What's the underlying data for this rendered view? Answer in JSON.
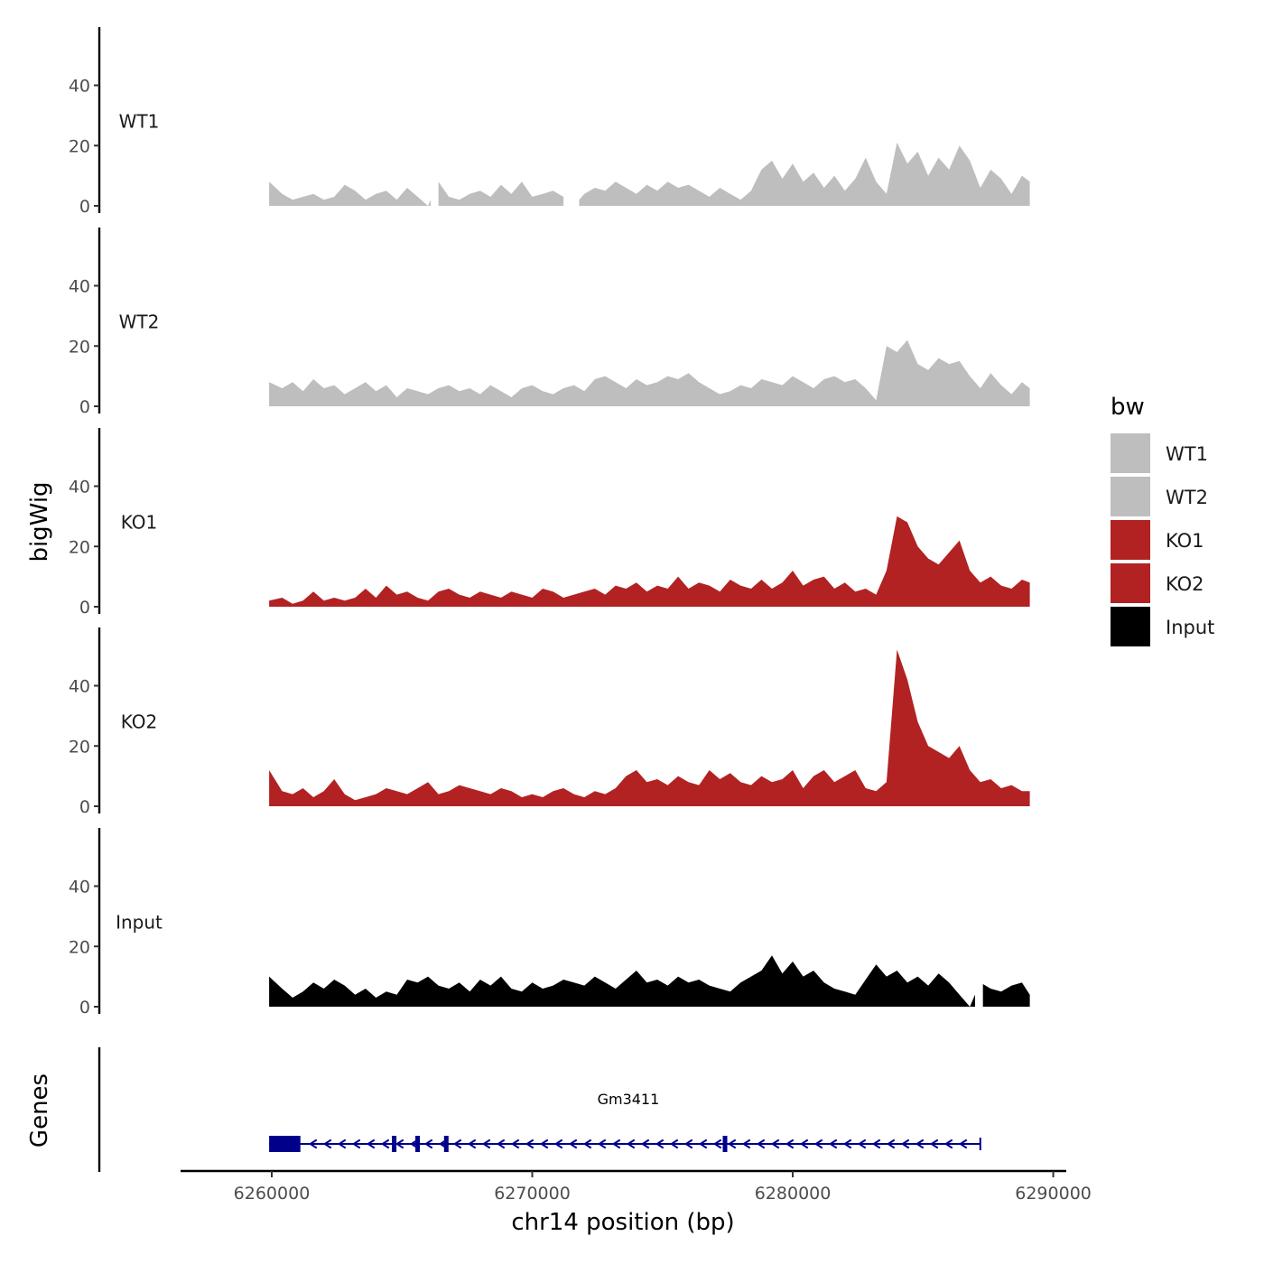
{
  "chart_data": {
    "type": "area",
    "chromosome": "chr14",
    "xlabel": "chr14 position (bp)",
    "ylabel_tracks": "bigWig",
    "ylabel_genes": "Genes",
    "xlim": [
      6256500,
      6290500
    ],
    "x_ticks": [
      6260000,
      6270000,
      6280000,
      6290000
    ],
    "x_tick_labels": [
      "6260000",
      "6270000",
      "6280000",
      "6290000"
    ],
    "ylim": [
      0,
      58
    ],
    "y_ticks": [
      0,
      20,
      40
    ],
    "y_tick_labels": [
      "0",
      "20",
      "40"
    ],
    "legend": {
      "title": "bw",
      "placement": "right",
      "entries": [
        {
          "label": "WT1",
          "color": "#bebebe"
        },
        {
          "label": "WT2",
          "color": "#bebebe"
        },
        {
          "label": "KO1",
          "color": "#b22222"
        },
        {
          "label": "KO2",
          "color": "#b22222"
        },
        {
          "label": "Input",
          "color": "#000000"
        }
      ]
    },
    "tracks": [
      {
        "name": "WT1",
        "color": "#bebebe",
        "x": [
          6259900,
          6260400,
          6260800,
          6261200,
          6261600,
          6262000,
          6262400,
          6262800,
          6263200,
          6263600,
          6264000,
          6264400,
          6264800,
          6265200,
          6265600,
          6266000,
          6266400,
          6266800,
          6267200,
          6267600,
          6268000,
          6268400,
          6268800,
          6269200,
          6269600,
          6270000,
          6270400,
          6270800,
          6271200,
          6271600,
          6272000,
          6272400,
          6272800,
          6273200,
          6273600,
          6274000,
          6274400,
          6274800,
          6275200,
          6275600,
          6276000,
          6276400,
          6276800,
          6277200,
          6277600,
          6278000,
          6278400,
          6278800,
          6279200,
          6279600,
          6280000,
          6280400,
          6280800,
          6281200,
          6281600,
          6282000,
          6282400,
          6282800,
          6283200,
          6283600,
          6284000,
          6284400,
          6284800,
          6285200,
          6285600,
          6286000,
          6286400,
          6286800,
          6287200,
          6287600,
          6288000,
          6288400,
          6288800,
          6289100
        ],
        "y": [
          8,
          4,
          2,
          3,
          4,
          2,
          3,
          7,
          5,
          2,
          4,
          5,
          2,
          6,
          3,
          0,
          8,
          3,
          2,
          4,
          5,
          3,
          7,
          4,
          8,
          3,
          4,
          5,
          3,
          0,
          4,
          6,
          5,
          8,
          6,
          4,
          7,
          5,
          8,
          6,
          7,
          5,
          3,
          6,
          4,
          2,
          5,
          12,
          15,
          9,
          14,
          8,
          11,
          6,
          10,
          5,
          9,
          16,
          8,
          4,
          21,
          14,
          18,
          10,
          16,
          12,
          20,
          15,
          6,
          12,
          9,
          4,
          10,
          8
        ],
        "gaps": [
          [
            6266100,
            6266400
          ],
          [
            6271200,
            6271800
          ]
        ]
      },
      {
        "name": "WT2",
        "color": "#bebebe",
        "x": [
          6259900,
          6260400,
          6260800,
          6261200,
          6261600,
          6262000,
          6262400,
          6262800,
          6263200,
          6263600,
          6264000,
          6264400,
          6264800,
          6265200,
          6265600,
          6266000,
          6266400,
          6266800,
          6267200,
          6267600,
          6268000,
          6268400,
          6268800,
          6269200,
          6269600,
          6270000,
          6270400,
          6270800,
          6271200,
          6271600,
          6272000,
          6272400,
          6272800,
          6273200,
          6273600,
          6274000,
          6274400,
          6274800,
          6275200,
          6275600,
          6276000,
          6276400,
          6276800,
          6277200,
          6277600,
          6278000,
          6278400,
          6278800,
          6279200,
          6279600,
          6280000,
          6280400,
          6280800,
          6281200,
          6281600,
          6282000,
          6282400,
          6282800,
          6283200,
          6283600,
          6284000,
          6284400,
          6284800,
          6285200,
          6285600,
          6286000,
          6286400,
          6286800,
          6287200,
          6287600,
          6288000,
          6288400,
          6288800,
          6289100
        ],
        "y": [
          8,
          6,
          8,
          5,
          9,
          6,
          7,
          4,
          6,
          8,
          5,
          7,
          3,
          6,
          5,
          4,
          6,
          7,
          5,
          6,
          4,
          7,
          5,
          3,
          6,
          7,
          5,
          4,
          6,
          7,
          5,
          9,
          10,
          8,
          6,
          9,
          7,
          8,
          10,
          9,
          11,
          8,
          6,
          4,
          5,
          7,
          6,
          9,
          8,
          7,
          10,
          8,
          6,
          9,
          10,
          8,
          9,
          6,
          2,
          20,
          18,
          22,
          14,
          12,
          16,
          14,
          15,
          10,
          6,
          11,
          7,
          4,
          8,
          6
        ],
        "gaps": []
      },
      {
        "name": "KO1",
        "color": "#b22222",
        "x": [
          6259900,
          6260400,
          6260800,
          6261200,
          6261600,
          6262000,
          6262400,
          6262800,
          6263200,
          6263600,
          6264000,
          6264400,
          6264800,
          6265200,
          6265600,
          6266000,
          6266400,
          6266800,
          6267200,
          6267600,
          6268000,
          6268400,
          6268800,
          6269200,
          6269600,
          6270000,
          6270400,
          6270800,
          6271200,
          6271600,
          6272000,
          6272400,
          6272800,
          6273200,
          6273600,
          6274000,
          6274400,
          6274800,
          6275200,
          6275600,
          6276000,
          6276400,
          6276800,
          6277200,
          6277600,
          6278000,
          6278400,
          6278800,
          6279200,
          6279600,
          6280000,
          6280400,
          6280800,
          6281200,
          6281600,
          6282000,
          6282400,
          6282800,
          6283200,
          6283600,
          6284000,
          6284400,
          6284800,
          6285200,
          6285600,
          6286000,
          6286400,
          6286800,
          6287200,
          6287600,
          6288000,
          6288400,
          6288800,
          6289100
        ],
        "y": [
          2,
          3,
          1,
          2,
          5,
          2,
          3,
          2,
          3,
          6,
          3,
          7,
          4,
          5,
          3,
          2,
          5,
          6,
          4,
          3,
          5,
          4,
          3,
          5,
          4,
          3,
          6,
          5,
          3,
          4,
          5,
          6,
          4,
          7,
          6,
          8,
          5,
          7,
          6,
          10,
          6,
          8,
          7,
          5,
          9,
          7,
          6,
          9,
          6,
          8,
          12,
          7,
          9,
          10,
          6,
          8,
          5,
          6,
          4,
          12,
          30,
          28,
          20,
          16,
          14,
          18,
          22,
          12,
          8,
          10,
          7,
          6,
          9,
          8
        ],
        "gaps": []
      },
      {
        "name": "KO2",
        "color": "#b22222",
        "x": [
          6259900,
          6260400,
          6260800,
          6261200,
          6261600,
          6262000,
          6262400,
          6262800,
          6263200,
          6263600,
          6264000,
          6264400,
          6264800,
          6265200,
          6265600,
          6266000,
          6266400,
          6266800,
          6267200,
          6267600,
          6268000,
          6268400,
          6268800,
          6269200,
          6269600,
          6270000,
          6270400,
          6270800,
          6271200,
          6271600,
          6272000,
          6272400,
          6272800,
          6273200,
          6273600,
          6274000,
          6274400,
          6274800,
          6275200,
          6275600,
          6276000,
          6276400,
          6276800,
          6277200,
          6277600,
          6278000,
          6278400,
          6278800,
          6279200,
          6279600,
          6280000,
          6280400,
          6280800,
          6281200,
          6281600,
          6282000,
          6282400,
          6282800,
          6283200,
          6283600,
          6284000,
          6284400,
          6284800,
          6285200,
          6285600,
          6286000,
          6286400,
          6286800,
          6287200,
          6287600,
          6288000,
          6288400,
          6288800,
          6289100
        ],
        "y": [
          12,
          5,
          4,
          6,
          3,
          5,
          9,
          4,
          2,
          3,
          4,
          6,
          5,
          4,
          6,
          8,
          4,
          5,
          7,
          6,
          5,
          4,
          6,
          5,
          3,
          4,
          3,
          5,
          6,
          4,
          3,
          5,
          4,
          6,
          10,
          12,
          8,
          9,
          7,
          10,
          8,
          7,
          12,
          9,
          11,
          8,
          7,
          10,
          8,
          9,
          12,
          6,
          10,
          12,
          8,
          10,
          12,
          6,
          5,
          8,
          52,
          42,
          28,
          20,
          18,
          16,
          20,
          12,
          8,
          9,
          6,
          7,
          5,
          5
        ],
        "gaps": []
      },
      {
        "name": "Input",
        "color": "#000000",
        "x": [
          6259900,
          6260400,
          6260800,
          6261200,
          6261600,
          6262000,
          6262400,
          6262800,
          6263200,
          6263600,
          6264000,
          6264400,
          6264800,
          6265200,
          6265600,
          6266000,
          6266400,
          6266800,
          6267200,
          6267600,
          6268000,
          6268400,
          6268800,
          6269200,
          6269600,
          6270000,
          6270400,
          6270800,
          6271200,
          6271600,
          6272000,
          6272400,
          6272800,
          6273200,
          6273600,
          6274000,
          6274400,
          6274800,
          6275200,
          6275600,
          6276000,
          6276400,
          6276800,
          6277200,
          6277600,
          6278000,
          6278400,
          6278800,
          6279200,
          6279600,
          6280000,
          6280400,
          6280800,
          6281200,
          6281600,
          6282000,
          6282400,
          6282800,
          6283200,
          6283600,
          6284000,
          6284400,
          6284800,
          6285200,
          6285600,
          6286000,
          6286400,
          6286800,
          6287200,
          6287600,
          6288000,
          6288400,
          6288800,
          6289100
        ],
        "y": [
          10,
          6,
          3,
          5,
          8,
          6,
          9,
          7,
          4,
          6,
          3,
          5,
          4,
          9,
          8,
          10,
          7,
          6,
          8,
          5,
          9,
          7,
          10,
          6,
          5,
          8,
          6,
          7,
          9,
          8,
          7,
          10,
          8,
          6,
          9,
          12,
          8,
          9,
          7,
          10,
          8,
          9,
          7,
          6,
          5,
          8,
          10,
          12,
          17,
          11,
          15,
          10,
          12,
          8,
          6,
          5,
          4,
          9,
          14,
          10,
          12,
          8,
          10,
          7,
          11,
          8,
          4,
          0,
          8,
          6,
          5,
          7,
          8,
          4
        ],
        "gaps": [
          [
            6287000,
            6287300
          ]
        ]
      }
    ],
    "genes": [
      {
        "name": "Gm3411",
        "strand": "-",
        "start": 6259900,
        "end": 6287200,
        "thick_start": 6259900,
        "thick_end": 6261100,
        "exons": [
          6264700,
          6265600,
          6266700,
          6277400
        ]
      }
    ]
  }
}
